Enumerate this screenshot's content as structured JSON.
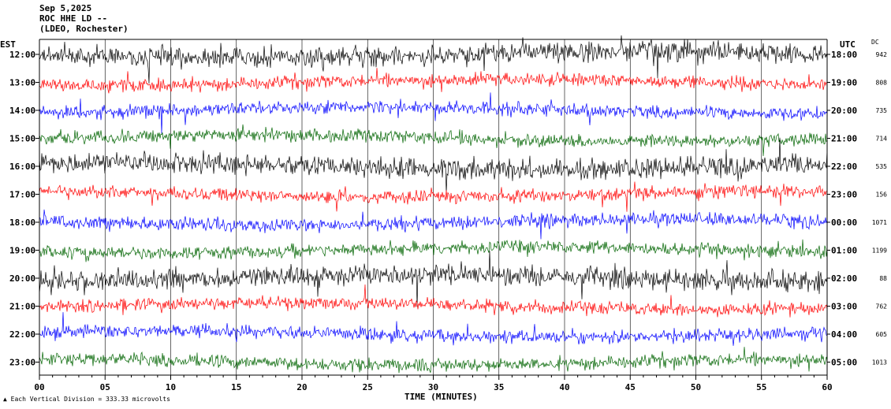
{
  "header": {
    "date": "Sep 5,2025",
    "station": "ROC HHE LD --",
    "network": "(LDEO, Rochester)"
  },
  "left_timezone": "EST",
  "right_timezone": "UTC",
  "dc_header": "DC",
  "footnote": "Each Vertical Division =  333.33 microvolts",
  "colors": {
    "black": "#000000",
    "red": "#ff0000",
    "blue": "#0000ff",
    "green": "#006400"
  },
  "chart_data": {
    "type": "line",
    "xlabel": "TIME (MINUTES)",
    "xlim": [
      0,
      60
    ],
    "x_ticks": [
      "00",
      "05",
      "10",
      "15",
      "20",
      "25",
      "30",
      "35",
      "40",
      "45",
      "50",
      "55",
      "60"
    ],
    "traces": [
      {
        "est": "12:00",
        "utc": "18:00",
        "dc": "942",
        "color": "black"
      },
      {
        "est": "13:00",
        "utc": "19:00",
        "dc": "808",
        "color": "red"
      },
      {
        "est": "14:00",
        "utc": "20:00",
        "dc": "735",
        "color": "blue"
      },
      {
        "est": "15:00",
        "utc": "21:00",
        "dc": "714",
        "color": "green"
      },
      {
        "est": "16:00",
        "utc": "22:00",
        "dc": "535",
        "color": "black"
      },
      {
        "est": "17:00",
        "utc": "23:00",
        "dc": "156",
        "color": "red"
      },
      {
        "est": "18:00",
        "utc": "00:00",
        "dc": "1071",
        "color": "blue"
      },
      {
        "est": "19:00",
        "utc": "01:00",
        "dc": "1199",
        "color": "green"
      },
      {
        "est": "20:00",
        "utc": "02:00",
        "dc": "88",
        "color": "black"
      },
      {
        "est": "21:00",
        "utc": "03:00",
        "dc": "762",
        "color": "red"
      },
      {
        "est": "22:00",
        "utc": "04:00",
        "dc": "605",
        "color": "blue"
      },
      {
        "est": "23:00",
        "utc": "05:00",
        "dc": "1013",
        "color": "green"
      }
    ]
  }
}
